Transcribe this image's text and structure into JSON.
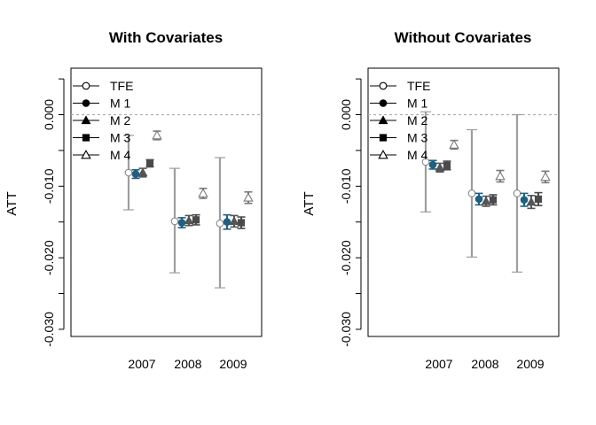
{
  "chart_data": [
    {
      "type": "scatter",
      "title": "With Covariates",
      "ylabel": "ATT",
      "xlabel": "",
      "ylim": [
        -0.031,
        0.0065
      ],
      "yticks": [
        0.0,
        -0.01,
        -0.02,
        -0.03
      ],
      "ytick_labels": [
        "0.000",
        "-0.010",
        "-0.020",
        "-0.030"
      ],
      "categories": [
        "2007",
        "2008",
        "2009"
      ],
      "reference_line": 0.0,
      "legend": {
        "placement": "top-left",
        "entries": [
          "TFE",
          "M 1",
          "M 2",
          "M 3",
          "M 4"
        ]
      },
      "series": [
        {
          "name": "TFE",
          "estimates": [
            -0.0081,
            -0.0149,
            -0.0152
          ],
          "ci_low": [
            -0.0133,
            -0.0221,
            -0.0242
          ],
          "ci_high": [
            -0.0029,
            -0.0075,
            -0.006
          ]
        },
        {
          "name": "M 1",
          "estimates": [
            -0.0083,
            -0.0151,
            -0.015
          ],
          "ci_low": [
            -0.0089,
            -0.0158,
            -0.016
          ],
          "ci_high": [
            -0.0077,
            -0.0144,
            -0.014
          ]
        },
        {
          "name": "M 2",
          "estimates": [
            -0.0081,
            -0.0148,
            -0.0149
          ],
          "ci_low": [
            -0.0087,
            -0.0155,
            -0.0157
          ],
          "ci_high": [
            -0.0075,
            -0.0141,
            -0.0141
          ]
        },
        {
          "name": "M 3",
          "estimates": [
            -0.0068,
            -0.0147,
            -0.0151
          ],
          "ci_low": [
            -0.0073,
            -0.0154,
            -0.0159
          ],
          "ci_high": [
            -0.0063,
            -0.014,
            -0.0143
          ]
        },
        {
          "name": "M 4",
          "estimates": [
            -0.0029,
            -0.011,
            -0.0116
          ],
          "ci_low": [
            -0.0035,
            -0.0117,
            -0.0124
          ],
          "ci_high": [
            -0.0023,
            -0.0103,
            -0.0108
          ]
        }
      ]
    },
    {
      "type": "scatter",
      "title": "Without Covariates",
      "ylabel": "ATT",
      "xlabel": "",
      "ylim": [
        -0.031,
        0.0065
      ],
      "yticks": [
        0.0,
        -0.01,
        -0.02,
        -0.03
      ],
      "ytick_labels": [
        "0.000",
        "-0.010",
        "-0.020",
        "-0.030"
      ],
      "categories": [
        "2007",
        "2008",
        "2009"
      ],
      "reference_line": 0.0,
      "legend": {
        "placement": "top-left",
        "entries": [
          "TFE",
          "M 1",
          "M 2",
          "M 3",
          "M 4"
        ]
      },
      "series": [
        {
          "name": "TFE",
          "estimates": [
            -0.0066,
            -0.011,
            -0.011
          ],
          "ci_low": [
            -0.0136,
            -0.0199,
            -0.022
          ],
          "ci_high": [
            0.0004,
            -0.0021,
            0.0
          ]
        },
        {
          "name": "M 1",
          "estimates": [
            -0.007,
            -0.0118,
            -0.0119
          ],
          "ci_low": [
            -0.0076,
            -0.0126,
            -0.0128
          ],
          "ci_high": [
            -0.0064,
            -0.011,
            -0.011
          ]
        },
        {
          "name": "M 2",
          "estimates": [
            -0.0074,
            -0.0121,
            -0.0122
          ],
          "ci_low": [
            -0.008,
            -0.0128,
            -0.0131
          ],
          "ci_high": [
            -0.0068,
            -0.0114,
            -0.0113
          ]
        },
        {
          "name": "M 3",
          "estimates": [
            -0.0071,
            -0.0119,
            -0.0118
          ],
          "ci_low": [
            -0.0077,
            -0.0126,
            -0.0127
          ],
          "ci_high": [
            -0.0065,
            -0.0112,
            -0.0109
          ]
        },
        {
          "name": "M 4",
          "estimates": [
            -0.0042,
            -0.0086,
            -0.0087
          ],
          "ci_low": [
            -0.0048,
            -0.0094,
            -0.0095
          ],
          "ci_high": [
            -0.0036,
            -0.0078,
            -0.0079
          ]
        }
      ]
    }
  ],
  "colors": {
    "tfe_interval": "#9e9e9e",
    "tfe_marker": "#8a8a8a",
    "m1": "#1f5f82",
    "m2": "#555555",
    "m3": "#4a4a4a",
    "m4": "#7a7a7a",
    "reference_line": "#b0b0b0",
    "axis": "#000000"
  }
}
